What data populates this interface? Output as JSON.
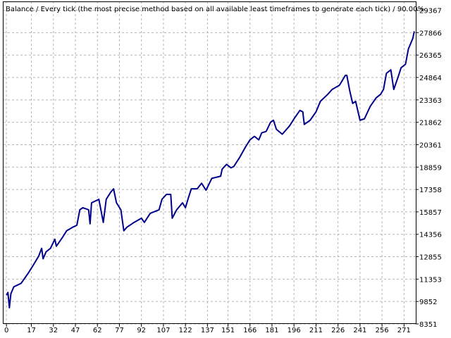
{
  "chart_data": {
    "type": "line",
    "title": "Balance / Every tick (the most precise method based on all available least timeframes to generate each tick) / 90.00%",
    "x": [
      0,
      1,
      2,
      3,
      5,
      10,
      13,
      15,
      18,
      22,
      24,
      25,
      27,
      30,
      33,
      34,
      38,
      41,
      45,
      48,
      50,
      52,
      56,
      57,
      58,
      63,
      66,
      68,
      71,
      73,
      75,
      78,
      80,
      82,
      87,
      92,
      94,
      98,
      104,
      106,
      109,
      112,
      113,
      116,
      120,
      122,
      124,
      126,
      130,
      133,
      136,
      140,
      146,
      147,
      150,
      153,
      155,
      159,
      163,
      166,
      169,
      172,
      174,
      177,
      180,
      182,
      184,
      188,
      193,
      196,
      200,
      202,
      203,
      207,
      211,
      214,
      219,
      222,
      227,
      231,
      232,
      234,
      236,
      238,
      241,
      244,
      248,
      252,
      255,
      257,
      259,
      262,
      264,
      267,
      269,
      272,
      274,
      277,
      278
    ],
    "values": [
      10274,
      10462,
      9430,
      10368,
      10837,
      11071,
      11494,
      11775,
      12244,
      12900,
      13416,
      12713,
      13182,
      13416,
      14026,
      13557,
      14120,
      14589,
      14823,
      14964,
      15996,
      16137,
      15996,
      15058,
      16465,
      16699,
      15152,
      16699,
      17168,
      17403,
      16465,
      15996,
      14589,
      14823,
      15152,
      15434,
      15152,
      15762,
      15996,
      16699,
      17027,
      17027,
      15434,
      15996,
      16465,
      16137,
      16793,
      17403,
      17403,
      17778,
      17309,
      18106,
      18247,
      18716,
      19044,
      18809,
      18903,
      19513,
      20216,
      20685,
      20920,
      20685,
      21154,
      21248,
      21858,
      21998,
      21389,
      21060,
      21623,
      22092,
      22655,
      22561,
      21717,
      21998,
      22561,
      23265,
      23734,
      24062,
      24344,
      25008,
      25008,
      23968,
      23124,
      23265,
      21998,
      22092,
      22932,
      23500,
      23734,
      24062,
      25141,
      25375,
      24062,
      24907,
      25515,
      25749,
      26782,
      27486,
      27955
    ],
    "color": "#00008b",
    "xlim": [
      -2,
      279
    ],
    "xticks": [
      0,
      17,
      32,
      47,
      62,
      77,
      92,
      107,
      122,
      137,
      151,
      166,
      181,
      196,
      211,
      226,
      241,
      256,
      271
    ],
    "ylim": [
      8351,
      29960
    ],
    "yticks": [
      8351,
      9852,
      11353,
      12855,
      14356,
      15857,
      17358,
      18859,
      20361,
      21862,
      23363,
      24864,
      26365,
      27866,
      29367
    ],
    "grid": true
  }
}
